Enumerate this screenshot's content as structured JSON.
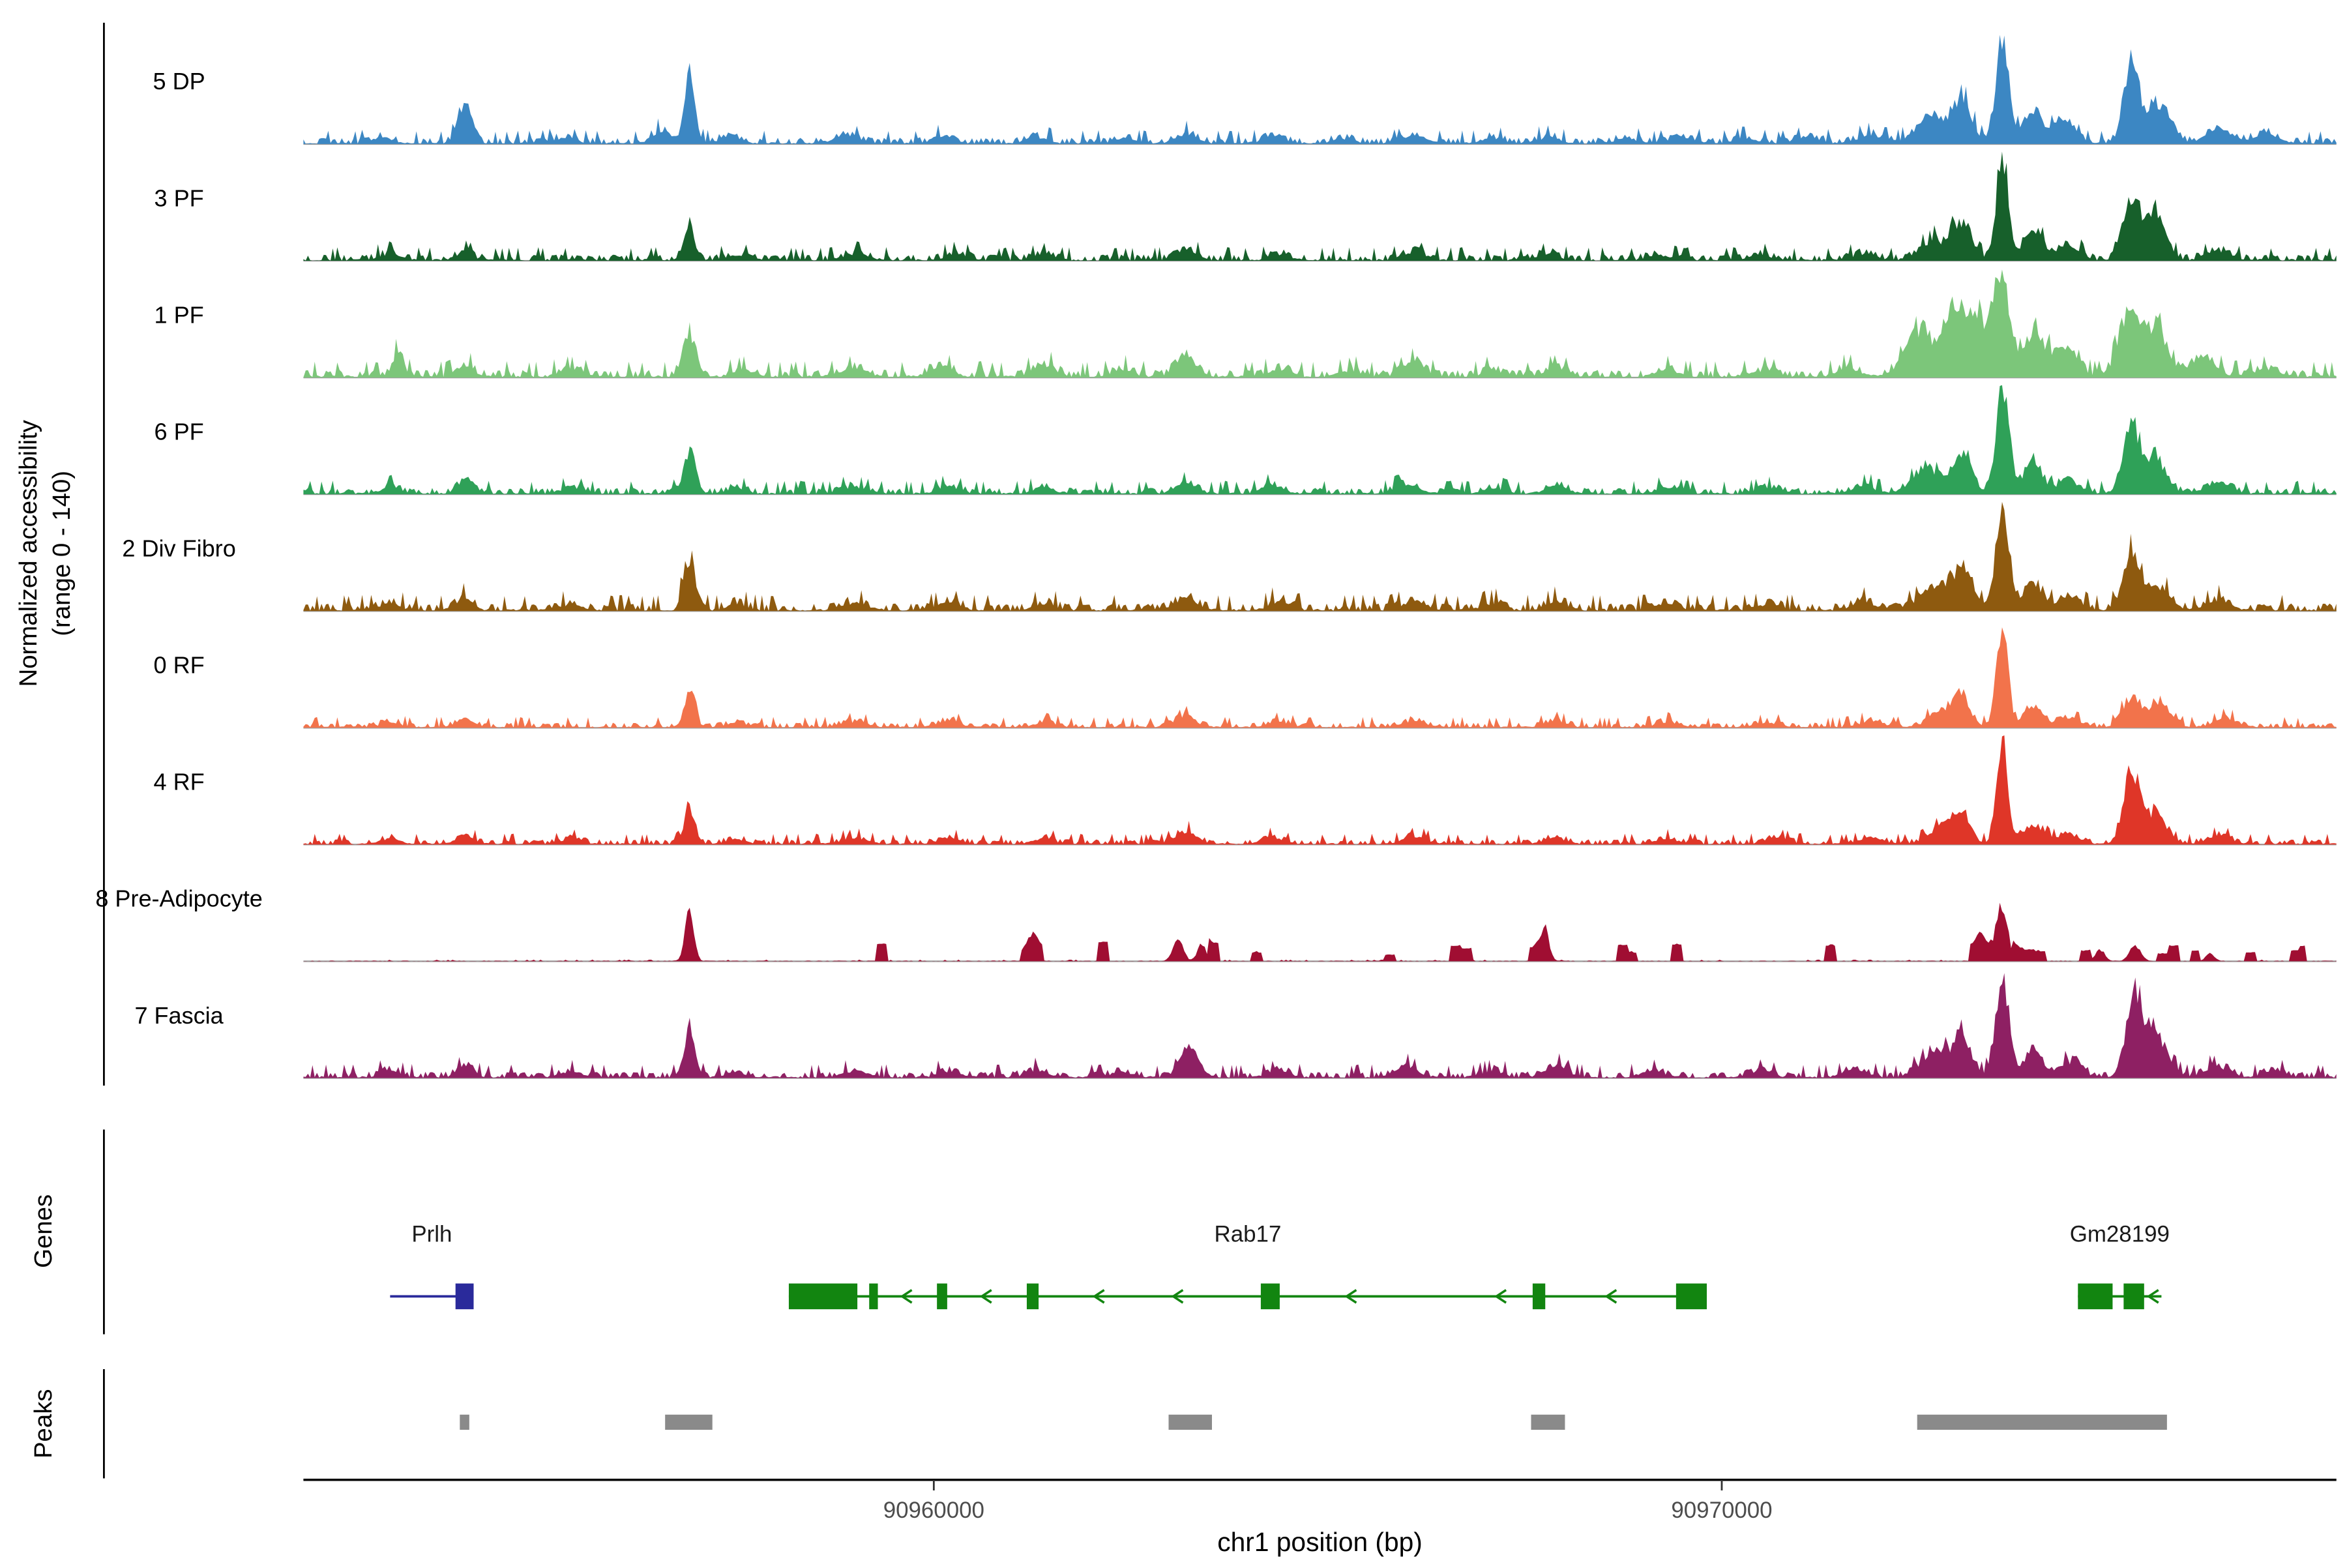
{
  "figure": {
    "ylabel": [
      "Normalized accessibility",
      "(range 0 - 140)"
    ],
    "xlabel": "chr1 position (bp)",
    "genes_label": "Genes",
    "peaks_label": "Peaks"
  },
  "chart_data": {
    "type": "area",
    "title": "",
    "region": {
      "chrom": "chr1",
      "start": 90952000,
      "end": 90977800
    },
    "y_range": [
      0,
      140
    ],
    "x_ticks": [
      90960000,
      90970000
    ],
    "x_axis_label": "chr1 position (bp)",
    "peak_color": "#8A8A8A",
    "tracks": [
      {
        "label": "5 DP",
        "color": "#3C87C3",
        "noise": 5,
        "peaks": [
          [
            90953000,
            8,
            120
          ],
          [
            90954050,
            48,
            90
          ],
          [
            90955300,
            6,
            150
          ],
          [
            90956550,
            16,
            120
          ],
          [
            90956900,
            83,
            65
          ],
          [
            90957400,
            8,
            120
          ],
          [
            90958900,
            10,
            160
          ],
          [
            90960100,
            8,
            130
          ],
          [
            90961300,
            8,
            130
          ],
          [
            90962400,
            6,
            130
          ],
          [
            90963200,
            11,
            130
          ],
          [
            90964300,
            8,
            130
          ],
          [
            90965200,
            6,
            130
          ],
          [
            90966100,
            10,
            140
          ],
          [
            90967100,
            7,
            130
          ],
          [
            90967800,
            8,
            130
          ],
          [
            90968800,
            6,
            140
          ],
          [
            90969500,
            7,
            150
          ],
          [
            90970300,
            6,
            140
          ],
          [
            90971100,
            8,
            150
          ],
          [
            90971900,
            10,
            160
          ],
          [
            90972650,
            38,
            170
          ],
          [
            90973050,
            58,
            120
          ],
          [
            90973560,
            126,
            85
          ],
          [
            90973950,
            42,
            120
          ],
          [
            90974350,
            26,
            130
          ],
          [
            90975200,
            108,
            95
          ],
          [
            90975550,
            48,
            140
          ],
          [
            90976300,
            18,
            160
          ],
          [
            90976900,
            12,
            150
          ]
        ]
      },
      {
        "label": "3 PF",
        "color": "#17602B",
        "noise": 5,
        "peaks": [
          [
            90953100,
            8,
            120
          ],
          [
            90954050,
            11,
            100
          ],
          [
            90956900,
            42,
            70
          ],
          [
            90957500,
            6,
            120
          ],
          [
            90959000,
            8,
            150
          ],
          [
            90960300,
            8,
            130
          ],
          [
            90961400,
            7,
            130
          ],
          [
            90963200,
            12,
            130
          ],
          [
            90964400,
            7,
            130
          ],
          [
            90966100,
            10,
            140
          ],
          [
            90967800,
            8,
            130
          ],
          [
            90969200,
            6,
            140
          ],
          [
            90970500,
            6,
            140
          ],
          [
            90971800,
            8,
            150
          ],
          [
            90972700,
            24,
            170
          ],
          [
            90973050,
            45,
            120
          ],
          [
            90973560,
            140,
            72
          ],
          [
            90973950,
            40,
            120
          ],
          [
            90974400,
            20,
            130
          ],
          [
            90975200,
            72,
            105
          ],
          [
            90975500,
            55,
            130
          ],
          [
            90976300,
            12,
            150
          ]
        ]
      },
      {
        "label": "1 PF",
        "color": "#7CC67A",
        "noise": 6,
        "peaks": [
          [
            90953200,
            30,
            70
          ],
          [
            90954050,
            16,
            100
          ],
          [
            90955400,
            8,
            140
          ],
          [
            90956900,
            56,
            80
          ],
          [
            90957600,
            8,
            130
          ],
          [
            90959000,
            10,
            150
          ],
          [
            90960100,
            13,
            140
          ],
          [
            90961400,
            14,
            140
          ],
          [
            90962400,
            8,
            130
          ],
          [
            90963200,
            29,
            120
          ],
          [
            90964400,
            10,
            130
          ],
          [
            90965300,
            8,
            130
          ],
          [
            90966100,
            18,
            130
          ],
          [
            90967100,
            8,
            130
          ],
          [
            90967900,
            10,
            130
          ],
          [
            90969300,
            8,
            140
          ],
          [
            90970500,
            8,
            140
          ],
          [
            90971600,
            10,
            150
          ],
          [
            90972500,
            60,
            170
          ],
          [
            90972950,
            80,
            140
          ],
          [
            90973250,
            70,
            150
          ],
          [
            90973560,
            122,
            95
          ],
          [
            90973950,
            48,
            140
          ],
          [
            90974350,
            36,
            150
          ],
          [
            90975150,
            82,
            120
          ],
          [
            90975500,
            68,
            140
          ],
          [
            90976100,
            25,
            160
          ],
          [
            90976900,
            10,
            150
          ]
        ]
      },
      {
        "label": "6 PF",
        "color": "#2FA158",
        "noise": 5,
        "peaks": [
          [
            90953100,
            8,
            120
          ],
          [
            90954050,
            18,
            100
          ],
          [
            90955400,
            6,
            140
          ],
          [
            90956900,
            55,
            75
          ],
          [
            90957500,
            7,
            120
          ],
          [
            90959000,
            8,
            150
          ],
          [
            90960200,
            8,
            130
          ],
          [
            90961400,
            8,
            130
          ],
          [
            90963200,
            14,
            130
          ],
          [
            90964300,
            10,
            130
          ],
          [
            90966000,
            12,
            140
          ],
          [
            90967100,
            7,
            130
          ],
          [
            90967900,
            10,
            130
          ],
          [
            90969300,
            7,
            140
          ],
          [
            90970600,
            7,
            140
          ],
          [
            90971800,
            9,
            150
          ],
          [
            90972600,
            34,
            170
          ],
          [
            90973050,
            48,
            120
          ],
          [
            90973560,
            128,
            80
          ],
          [
            90973950,
            36,
            120
          ],
          [
            90974400,
            18,
            130
          ],
          [
            90975200,
            80,
            105
          ],
          [
            90975500,
            44,
            135
          ],
          [
            90976300,
            12,
            150
          ]
        ]
      },
      {
        "label": "2 Div Fibro",
        "color": "#8E5A0F",
        "noise": 6,
        "peaks": [
          [
            90953100,
            9,
            120
          ],
          [
            90954050,
            15,
            100
          ],
          [
            90955400,
            7,
            140
          ],
          [
            90956900,
            66,
            72
          ],
          [
            90957500,
            8,
            120
          ],
          [
            90959000,
            9,
            150
          ],
          [
            90960200,
            10,
            130
          ],
          [
            90961400,
            8,
            130
          ],
          [
            90963200,
            18,
            130
          ],
          [
            90964400,
            12,
            130
          ],
          [
            90966100,
            12,
            140
          ],
          [
            90967100,
            8,
            130
          ],
          [
            90967900,
            10,
            130
          ],
          [
            90969300,
            8,
            140
          ],
          [
            90970600,
            8,
            140
          ],
          [
            90971800,
            10,
            150
          ],
          [
            90972700,
            30,
            180
          ],
          [
            90973050,
            46,
            120
          ],
          [
            90973560,
            140,
            78
          ],
          [
            90973950,
            34,
            120
          ],
          [
            90974400,
            18,
            130
          ],
          [
            90975200,
            72,
            105
          ],
          [
            90975550,
            30,
            135
          ],
          [
            90976300,
            12,
            150
          ]
        ]
      },
      {
        "label": "0 RF",
        "color": "#F2734B",
        "noise": 4,
        "peaks": [
          [
            90953100,
            7,
            120
          ],
          [
            90954050,
            12,
            100
          ],
          [
            90956900,
            46,
            68
          ],
          [
            90957500,
            6,
            120
          ],
          [
            90959000,
            7,
            150
          ],
          [
            90960200,
            8,
            130
          ],
          [
            90961400,
            6,
            130
          ],
          [
            90963200,
            14,
            130
          ],
          [
            90964400,
            7,
            130
          ],
          [
            90966100,
            8,
            140
          ],
          [
            90967900,
            8,
            130
          ],
          [
            90969300,
            6,
            140
          ],
          [
            90970600,
            6,
            140
          ],
          [
            90971900,
            8,
            150
          ],
          [
            90972800,
            20,
            160
          ],
          [
            90973050,
            32,
            110
          ],
          [
            90973560,
            130,
            72
          ],
          [
            90973950,
            26,
            120
          ],
          [
            90974400,
            12,
            130
          ],
          [
            90975200,
            36,
            115
          ],
          [
            90975550,
            26,
            140
          ],
          [
            90976400,
            10,
            150
          ]
        ]
      },
      {
        "label": "4 RF",
        "color": "#DF3628",
        "noise": 4,
        "peaks": [
          [
            90953100,
            7,
            120
          ],
          [
            90954050,
            12,
            100
          ],
          [
            90955400,
            6,
            140
          ],
          [
            90956900,
            42,
            68
          ],
          [
            90957500,
            6,
            120
          ],
          [
            90959000,
            7,
            150
          ],
          [
            90960200,
            8,
            130
          ],
          [
            90961400,
            7,
            130
          ],
          [
            90963200,
            16,
            130
          ],
          [
            90964300,
            8,
            130
          ],
          [
            90966100,
            10,
            140
          ],
          [
            90967900,
            8,
            130
          ],
          [
            90969300,
            6,
            140
          ],
          [
            90970700,
            7,
            140
          ],
          [
            90971900,
            8,
            150
          ],
          [
            90972800,
            22,
            160
          ],
          [
            90973050,
            34,
            110
          ],
          [
            90973560,
            128,
            70
          ],
          [
            90973950,
            26,
            120
          ],
          [
            90974400,
            14,
            130
          ],
          [
            90975200,
            92,
            95
          ],
          [
            90975500,
            42,
            125
          ],
          [
            90976300,
            10,
            150
          ]
        ]
      },
      {
        "label": "8 Pre-Adipocyte",
        "color": "#A00E32",
        "noise": 0.6,
        "sparse_blocks": true,
        "blocks_region": [
          90959200,
          90977400
        ],
        "block_density": 0.22,
        "peaks": [
          [
            90956900,
            62,
            55
          ],
          [
            90961250,
            22,
            60
          ],
          [
            90963100,
            26,
            65
          ],
          [
            90963400,
            22,
            55
          ],
          [
            90967750,
            32,
            60
          ],
          [
            90973300,
            20,
            60
          ],
          [
            90973560,
            62,
            75
          ],
          [
            90974800,
            14,
            60
          ],
          [
            90975250,
            20,
            70
          ],
          [
            90976200,
            10,
            55
          ]
        ]
      },
      {
        "label": "7 Fascia",
        "color": "#8E2063",
        "noise": 5,
        "peaks": [
          [
            90953100,
            9,
            120
          ],
          [
            90954050,
            16,
            100
          ],
          [
            90955400,
            7,
            140
          ],
          [
            90956900,
            58,
            70
          ],
          [
            90957500,
            7,
            120
          ],
          [
            90959000,
            8,
            150
          ],
          [
            90960200,
            8,
            130
          ],
          [
            90961300,
            9,
            130
          ],
          [
            90962400,
            7,
            130
          ],
          [
            90963250,
            36,
            110
          ],
          [
            90964400,
            8,
            130
          ],
          [
            90966000,
            13,
            140
          ],
          [
            90967100,
            8,
            130
          ],
          [
            90967900,
            15,
            130
          ],
          [
            90969100,
            8,
            140
          ],
          [
            90970500,
            8,
            140
          ],
          [
            90971700,
            10,
            150
          ],
          [
            90972700,
            32,
            180
          ],
          [
            90973050,
            46,
            120
          ],
          [
            90973560,
            130,
            85
          ],
          [
            90973950,
            32,
            120
          ],
          [
            90974450,
            20,
            130
          ],
          [
            90975250,
            106,
            110
          ],
          [
            90975550,
            48,
            130
          ],
          [
            90976300,
            14,
            150
          ],
          [
            90977000,
            8,
            140
          ]
        ]
      }
    ],
    "genes": [
      {
        "name": "Prlh",
        "color": "#2A2A9B",
        "strand": "+",
        "line": [
          90953100,
          90954160
        ],
        "exons": [
          [
            90953930,
            90954160
          ]
        ],
        "chevrons": []
      },
      {
        "name": "Rab17",
        "color": "#128510",
        "strand": "-",
        "line": [
          90958160,
          90969810
        ],
        "exons": [
          [
            90958160,
            90959030
          ],
          [
            90959180,
            90959290
          ],
          [
            90960040,
            90960170
          ],
          [
            90961180,
            90961330
          ],
          [
            90964150,
            90964390
          ],
          [
            90967600,
            90967760
          ],
          [
            90969420,
            90969810
          ]
        ],
        "chevrons": [
          90959660,
          90960670,
          90962100,
          90963100,
          90965300,
          90967200,
          90968600
        ]
      },
      {
        "name": "Gm28199",
        "color": "#128510",
        "strand": "-",
        "line": [
          90974520,
          90975580
        ],
        "exons": [
          [
            90974520,
            90974960
          ],
          [
            90975100,
            90975360
          ]
        ],
        "chevrons": [
          90975480
        ]
      }
    ],
    "peak_regions": [
      [
        90953985,
        90954105
      ],
      [
        90956590,
        90957190
      ],
      [
        90962980,
        90963530
      ],
      [
        90967580,
        90968010
      ],
      [
        90972480,
        90975650
      ]
    ]
  }
}
